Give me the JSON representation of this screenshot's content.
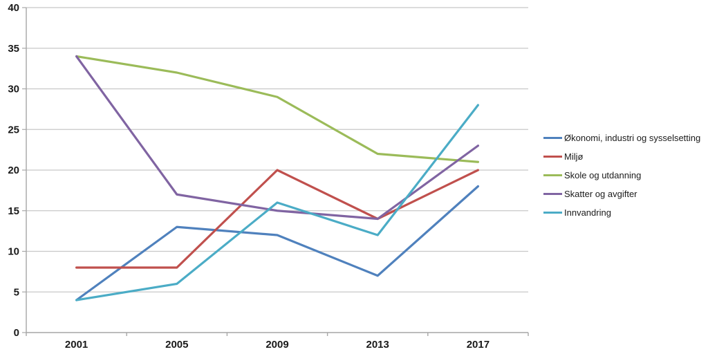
{
  "chart_data": {
    "type": "line",
    "categories": [
      "2001",
      "2005",
      "2009",
      "2013",
      "2017"
    ],
    "series": [
      {
        "name": "Økonomi, industri og sysselsetting",
        "color": "#4F81BD",
        "values": [
          4,
          13,
          12,
          7,
          18
        ]
      },
      {
        "name": "Miljø",
        "color": "#C0504D",
        "values": [
          8,
          8,
          20,
          14,
          20
        ]
      },
      {
        "name": "Skole og utdanning",
        "color": "#9BBB59",
        "values": [
          34,
          32,
          29,
          22,
          21
        ]
      },
      {
        "name": "Skatter og avgifter",
        "color": "#8064A2",
        "values": [
          34,
          17,
          15,
          14,
          23
        ]
      },
      {
        "name": "Innvandring",
        "color": "#4BACC6",
        "values": [
          4,
          6,
          16,
          12,
          28
        ]
      }
    ],
    "title": "",
    "xlabel": "",
    "ylabel": "",
    "ylim": [
      0,
      40
    ],
    "y_ticks": [
      0,
      5,
      10,
      15,
      20,
      25,
      30,
      35,
      40
    ],
    "grid": true,
    "legend_position": "right"
  },
  "colors": {
    "gridline": "#C8C8C8",
    "axis": "#A6A6A6",
    "background": "#FFFFFF"
  }
}
